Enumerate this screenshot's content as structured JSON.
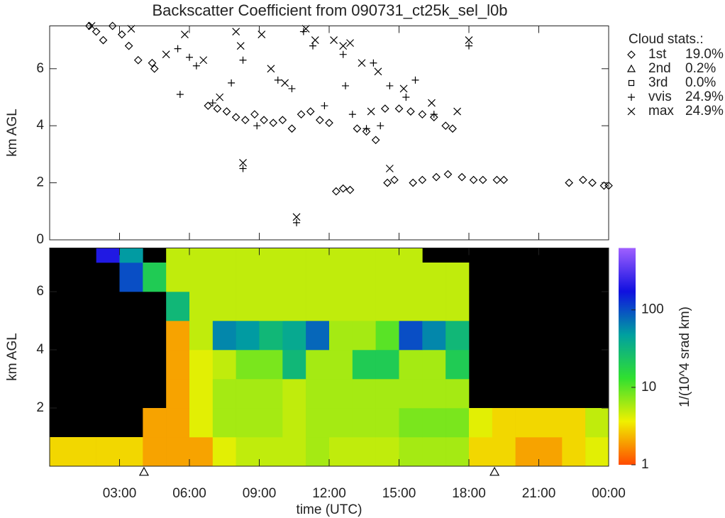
{
  "chart_data": [
    {
      "type": "scatter",
      "title": "Backscatter Coefficient from 090731_ct25k_sel_l0b",
      "y_label": "km AGL",
      "xlim": [
        0,
        24
      ],
      "ylim": [
        0,
        7.5
      ],
      "yticks": [
        0,
        2,
        4,
        6
      ],
      "legend_title": "Cloud stats.:",
      "legend": "upper right",
      "series": [
        {
          "name": "1st",
          "marker": "diamond",
          "stat_label": "19.0%",
          "x": [
            1.7,
            2.0,
            2.3,
            2.7,
            3.1,
            3.4,
            3.8,
            4.4,
            4.5,
            6.8,
            7.2,
            7.6,
            8.0,
            8.4,
            8.8,
            9.2,
            9.6,
            10.0,
            10.4,
            10.8,
            11.2,
            11.6,
            12.0,
            12.3,
            12.6,
            12.9,
            13.2,
            13.6,
            14.0,
            14.5,
            14.8,
            14.4,
            15.0,
            15.5,
            16.0,
            16.5,
            17.0,
            17.3,
            15.6,
            16.0,
            16.6,
            17.1,
            17.7,
            18.2,
            18.6,
            19.2,
            19.5,
            22.3,
            22.9,
            23.3,
            23.8,
            24.0
          ],
          "y": [
            7.5,
            7.3,
            7.0,
            7.5,
            7.2,
            6.8,
            6.3,
            6.2,
            6.0,
            4.7,
            4.6,
            4.5,
            4.3,
            4.2,
            4.4,
            4.2,
            4.1,
            4.2,
            3.9,
            4.4,
            4.5,
            4.2,
            4.1,
            1.7,
            1.8,
            1.75,
            3.9,
            3.8,
            3.5,
            2.0,
            2.1,
            4.6,
            4.6,
            4.5,
            4.4,
            4.3,
            4.0,
            3.9,
            2.0,
            2.1,
            2.2,
            2.3,
            2.2,
            2.1,
            2.1,
            2.1,
            2.1,
            2.0,
            2.1,
            2.0,
            1.9,
            1.9
          ]
        },
        {
          "name": "2nd",
          "marker": "triangle",
          "stat_label": "0.2%",
          "x": [],
          "y": []
        },
        {
          "name": "3rd",
          "marker": "square",
          "stat_label": "0.0%",
          "x": [],
          "y": []
        },
        {
          "name": "vvis",
          "marker": "plus",
          "stat_label": "24.9%",
          "x": [
            5.5,
            5.6,
            6.0,
            6.3,
            7.0,
            7.8,
            8.3,
            8.3,
            8.9,
            9.8,
            10.4,
            10.6,
            10.9,
            11.3,
            11.8,
            12.6,
            12.7,
            13.0,
            13.6,
            13.9,
            14.2,
            14.6,
            15.3,
            15.7,
            16.5,
            18.0
          ],
          "y": [
            6.7,
            5.1,
            6.4,
            6.1,
            4.8,
            5.5,
            6.3,
            2.5,
            4.0,
            5.6,
            5.3,
            0.6,
            7.3,
            6.8,
            4.7,
            6.5,
            5.4,
            4.4,
            3.9,
            6.2,
            4.0,
            5.4,
            5.0,
            5.6,
            4.4,
            6.8
          ]
        },
        {
          "name": "max",
          "marker": "cross",
          "stat_label": "24.9%",
          "x": [
            1.8,
            3.5,
            5.0,
            5.8,
            6.6,
            7.3,
            8.0,
            8.2,
            8.3,
            9.1,
            9.5,
            10.1,
            10.6,
            11.0,
            11.4,
            12.2,
            12.6,
            12.9,
            13.4,
            13.8,
            14.1,
            14.6,
            15.2,
            16.4,
            17.5,
            18.0
          ],
          "y": [
            7.5,
            7.4,
            6.5,
            7.2,
            6.3,
            5.0,
            7.3,
            6.8,
            2.7,
            7.2,
            6.0,
            5.5,
            0.8,
            7.4,
            7.0,
            7.0,
            6.8,
            6.9,
            6.2,
            4.5,
            5.9,
            2.5,
            5.3,
            4.8,
            4.5,
            7.0
          ]
        }
      ]
    },
    {
      "type": "heatmap",
      "x_label": "time (UTC)",
      "y_label": "km AGL",
      "xlim": [
        0,
        24
      ],
      "ylim": [
        0,
        7.5
      ],
      "xticks": [
        {
          "value": 3,
          "label": "03:00"
        },
        {
          "value": 6,
          "label": "06:00"
        },
        {
          "value": 9,
          "label": "09:00"
        },
        {
          "value": 12,
          "label": "12:00"
        },
        {
          "value": 15,
          "label": "15:00"
        },
        {
          "value": 18,
          "label": "18:00"
        },
        {
          "value": 21,
          "label": "21:00"
        },
        {
          "value": 24,
          "label": "00:00"
        }
      ],
      "yticks": [
        2,
        4,
        6
      ],
      "x_edges": [
        0,
        1,
        2,
        3,
        4,
        5,
        6,
        7,
        8,
        9,
        10,
        11,
        12,
        13,
        14,
        15,
        16,
        17,
        18,
        19,
        20,
        21,
        22,
        23,
        24
      ],
      "y_edges": [
        0,
        1,
        2,
        3,
        4,
        5,
        6,
        7,
        7.5
      ],
      "values": [
        [
          3,
          3,
          3,
          3,
          2,
          2,
          2,
          4,
          5,
          5,
          5,
          6,
          5,
          5,
          5,
          6,
          6,
          6,
          3,
          3,
          2,
          2,
          3,
          4
        ],
        [
          null,
          null,
          null,
          null,
          2,
          2,
          4,
          6,
          6,
          6,
          5,
          6,
          6,
          6,
          6,
          8,
          8,
          8,
          4,
          3,
          3,
          3,
          3,
          5
        ],
        [
          null,
          null,
          null,
          null,
          null,
          2,
          4,
          6,
          6,
          6,
          5,
          6,
          6,
          6,
          6,
          6,
          6,
          6,
          null,
          null,
          null,
          null,
          null,
          null
        ],
        [
          null,
          null,
          null,
          null,
          null,
          2,
          4,
          5,
          8,
          8,
          30,
          6,
          6,
          20,
          20,
          6,
          6,
          20,
          null,
          null,
          null,
          null,
          null,
          null
        ],
        [
          null,
          null,
          null,
          null,
          null,
          2,
          5,
          60,
          50,
          30,
          40,
          80,
          6,
          6,
          10,
          100,
          60,
          30,
          null,
          null,
          null,
          null,
          null,
          null
        ],
        [
          null,
          null,
          null,
          null,
          null,
          30,
          5,
          5,
          5,
          5,
          5,
          5,
          5,
          5,
          5,
          5,
          5,
          5,
          null,
          null,
          null,
          null,
          null,
          null
        ],
        [
          null,
          null,
          null,
          100,
          20,
          5,
          5,
          5,
          5,
          5,
          5,
          5,
          5,
          5,
          5,
          5,
          5,
          5,
          null,
          null,
          null,
          null,
          null,
          null
        ],
        [
          null,
          null,
          200,
          50,
          null,
          5,
          5,
          5,
          5,
          5,
          5,
          5,
          5,
          5,
          5,
          5,
          null,
          null,
          null,
          null,
          null,
          null,
          null,
          null
        ]
      ],
      "colormap": [
        "#ff4a00",
        "#f0f000",
        "#30e030",
        "#00a0a0",
        "#1010e0",
        "#a060ff"
      ],
      "clim": [
        1,
        630
      ],
      "clog": true,
      "cticks": [
        1,
        10,
        100
      ],
      "colorbar_label": "1/(10^4 srad km)",
      "markers": {
        "symbol": "triangle",
        "x": [
          4.05,
          19.1
        ]
      }
    }
  ]
}
